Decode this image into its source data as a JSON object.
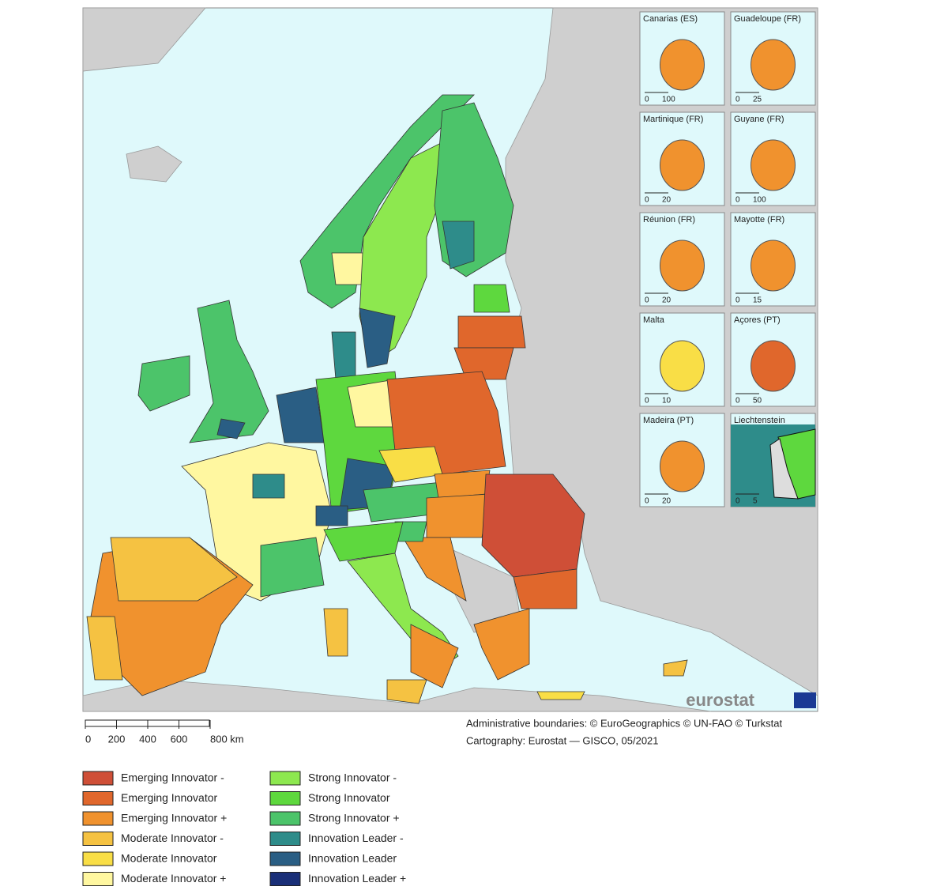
{
  "map": {
    "insets": [
      {
        "title": "Canarias (ES)",
        "scale": [
          "0",
          "100"
        ]
      },
      {
        "title": "Guadeloupe (FR)",
        "scale": [
          "0",
          "25"
        ]
      },
      {
        "title": "Martinique (FR)",
        "scale": [
          "0",
          "20"
        ]
      },
      {
        "title": "Guyane (FR)",
        "scale": [
          "0",
          "100"
        ]
      },
      {
        "title": "Réunion (FR)",
        "scale": [
          "0",
          "20"
        ]
      },
      {
        "title": "Mayotte (FR)",
        "scale": [
          "0",
          "15"
        ]
      },
      {
        "title": "Malta",
        "scale": [
          "0",
          "10"
        ]
      },
      {
        "title": "Açores (PT)",
        "scale": [
          "0",
          "50"
        ]
      },
      {
        "title": "Madeira (PT)",
        "scale": [
          "0",
          "20"
        ]
      },
      {
        "title": "Liechtenstein",
        "scale": [
          "0",
          "5"
        ]
      }
    ],
    "scale_bar": [
      "0",
      "200",
      "400",
      "600",
      "800 km"
    ],
    "attribution": [
      "Administrative boundaries: © EuroGeographics © UN-FAO © Turkstat",
      "Cartography: Eurostat — GISCO, 05/2021"
    ],
    "logo": "eurostat"
  },
  "legend": [
    {
      "label": "Emerging Innovator -",
      "color": "#cf4f37"
    },
    {
      "label": "Emerging Innovator",
      "color": "#e0672c"
    },
    {
      "label": "Emerging Innovator +",
      "color": "#f0922e"
    },
    {
      "label": "Moderate Innovator -",
      "color": "#f5c242"
    },
    {
      "label": "Moderate Innovator",
      "color": "#f9de46"
    },
    {
      "label": "Moderate Innovator +",
      "color": "#fff7a0"
    },
    {
      "label": "Strong Innovator -",
      "color": "#8de84f"
    },
    {
      "label": "Strong Innovator",
      "color": "#5ed83e"
    },
    {
      "label": "Strong Innovator +",
      "color": "#4cc46a"
    },
    {
      "label": "Innovation Leader -",
      "color": "#2e8c8a"
    },
    {
      "label": "Innovation Leader",
      "color": "#2a5e84"
    },
    {
      "label": "Innovation Leader +",
      "color": "#1a2f78"
    }
  ]
}
